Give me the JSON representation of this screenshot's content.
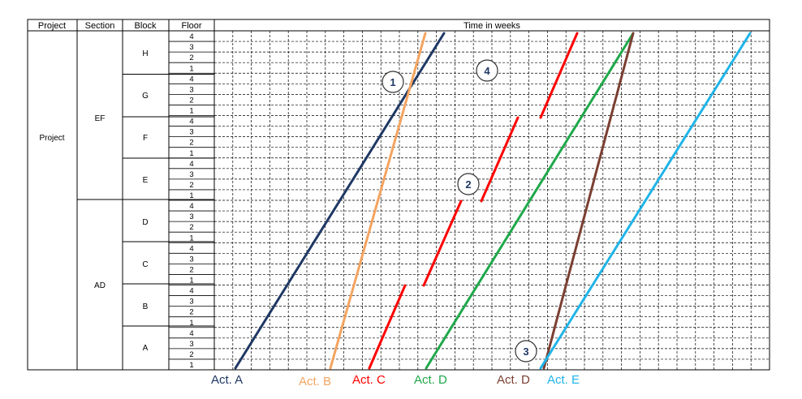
{
  "headers": {
    "project": "Project",
    "section": "Section",
    "block": "Block",
    "floor": "Floor",
    "time": "Time in weeks"
  },
  "project_label": "Project",
  "sections": [
    {
      "label": "EF",
      "blocks": [
        "H",
        "G",
        "F",
        "E"
      ]
    },
    {
      "label": "AD",
      "blocks": [
        "D",
        "C",
        "B",
        "A"
      ]
    }
  ],
  "floor_labels": [
    "4",
    "3",
    "2",
    "1"
  ],
  "activities": [
    {
      "label": "Act. A",
      "color": "#1f3864"
    },
    {
      "label": "Act. B",
      "color": "#f4a460"
    },
    {
      "label": "Act. C",
      "color": "#ff0000"
    },
    {
      "label": "Act. D",
      "color": "#1fa84a"
    },
    {
      "label": "Act. D",
      "color": "#7b3f32"
    },
    {
      "label": "Act. E",
      "color": "#1fb4e8"
    }
  ],
  "markers": [
    "1",
    "2",
    "3",
    "4"
  ],
  "colors": {
    "grid_dashed": "#000000",
    "marker_text": "#1f3864"
  }
}
